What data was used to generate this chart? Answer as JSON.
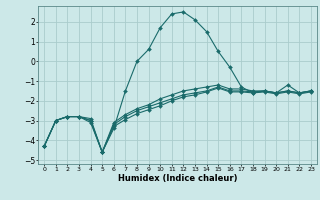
{
  "title": "",
  "xlabel": "Humidex (Indice chaleur)",
  "background_color": "#cce8e8",
  "grid_color": "#aacccc",
  "line_color": "#1a6b6b",
  "xlim": [
    -0.5,
    23.5
  ],
  "ylim": [
    -5.2,
    2.8
  ],
  "yticks": [
    -5,
    -4,
    -3,
    -2,
    -1,
    0,
    1,
    2
  ],
  "xticks": [
    0,
    1,
    2,
    3,
    4,
    5,
    6,
    7,
    8,
    9,
    10,
    11,
    12,
    13,
    14,
    15,
    16,
    17,
    18,
    19,
    20,
    21,
    22,
    23
  ],
  "lines": [
    [
      0,
      1,
      2,
      3,
      4,
      5,
      6,
      7,
      8,
      9,
      10,
      11,
      12,
      13,
      14,
      15,
      16,
      17,
      18,
      19,
      20,
      21,
      22,
      23
    ],
    [
      -4.3,
      -3.0,
      -2.8,
      -2.8,
      -2.9,
      -4.6,
      -3.4,
      -1.5,
      0.0,
      0.6,
      1.7,
      2.4,
      2.5,
      2.1,
      1.5,
      0.5,
      -0.3,
      -1.3,
      -1.6,
      -1.5,
      -1.6,
      -1.2,
      -1.6,
      -1.5
    ],
    [
      -4.3,
      -3.0,
      -2.8,
      -2.8,
      -3.0,
      -4.6,
      -3.1,
      -2.7,
      -2.4,
      -2.2,
      -1.9,
      -1.7,
      -1.5,
      -1.4,
      -1.3,
      -1.2,
      -1.4,
      -1.4,
      -1.5,
      -1.5,
      -1.6,
      -1.5,
      -1.6,
      -1.5
    ],
    [
      -4.3,
      -3.0,
      -2.8,
      -2.8,
      -3.0,
      -4.6,
      -3.2,
      -2.8,
      -2.5,
      -2.3,
      -2.1,
      -1.9,
      -1.7,
      -1.6,
      -1.5,
      -1.3,
      -1.5,
      -1.5,
      -1.55,
      -1.5,
      -1.6,
      -1.5,
      -1.6,
      -1.5
    ],
    [
      -4.3,
      -3.0,
      -2.8,
      -2.8,
      -3.1,
      -4.6,
      -3.3,
      -2.95,
      -2.65,
      -2.45,
      -2.25,
      -2.0,
      -1.8,
      -1.7,
      -1.55,
      -1.35,
      -1.55,
      -1.55,
      -1.6,
      -1.55,
      -1.65,
      -1.55,
      -1.65,
      -1.55
    ]
  ]
}
